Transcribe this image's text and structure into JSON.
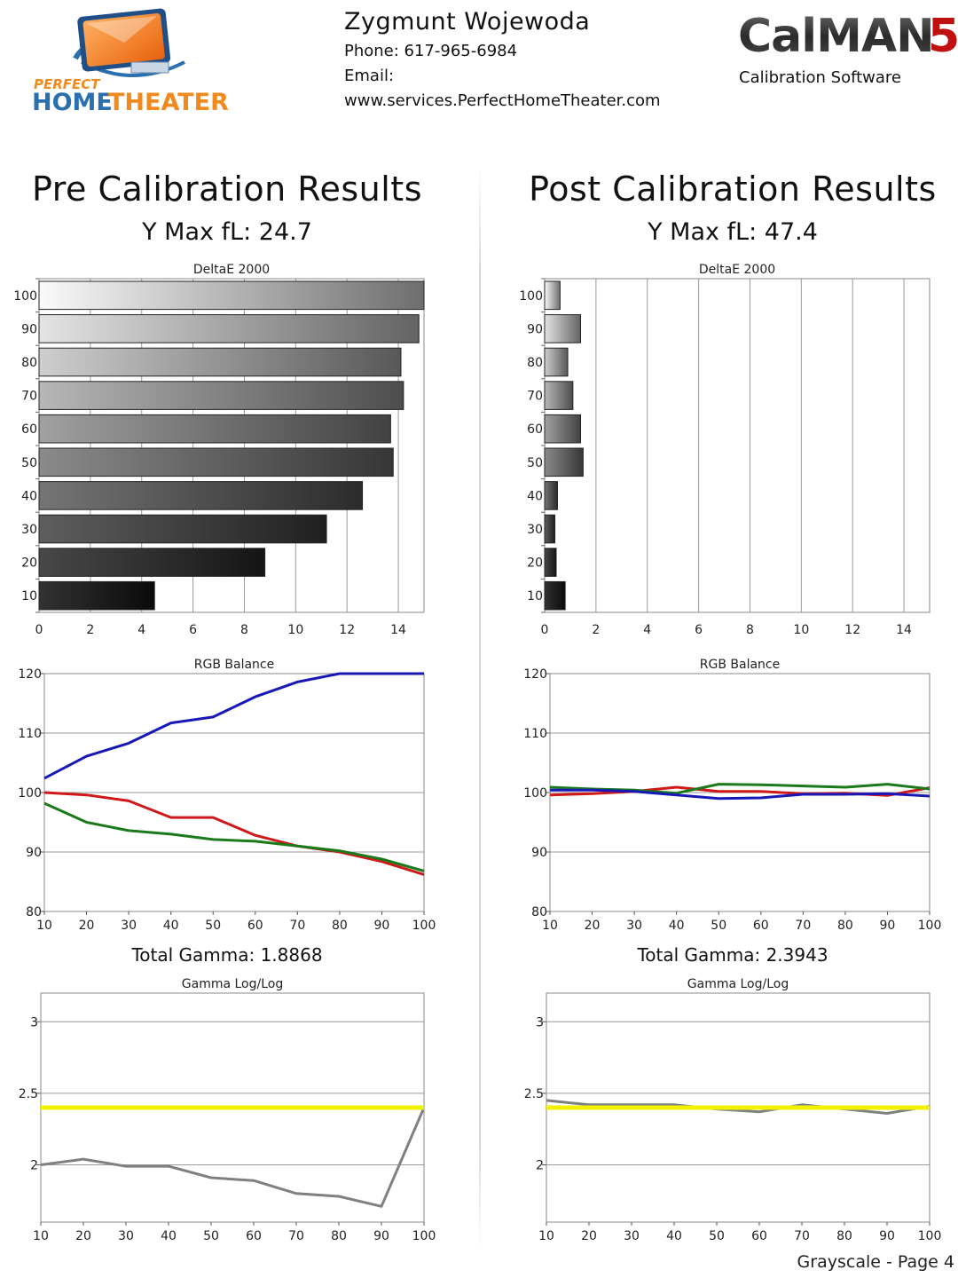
{
  "header": {
    "left_logo": {
      "line1": "PERFECT",
      "line2_home": "HOME",
      "line2_theater": "THEATER"
    },
    "contact": {
      "name": "Zygmunt Wojewoda",
      "phone": "Phone: 617-965-6984",
      "email": "Email:",
      "website": "www.services.PerfectHomeTheater.com"
    },
    "right_logo": {
      "text": "CalMAN",
      "version": "5",
      "subtitle": "Calibration Software"
    }
  },
  "pre": {
    "title": "Pre Calibration Results",
    "ymax": "Y Max fL: 24.7",
    "gamma_total": "Total Gamma: 1.8868"
  },
  "post": {
    "title": "Post Calibration Results",
    "ymax": "Y Max fL: 47.4",
    "gamma_total": "Total Gamma: 2.3943"
  },
  "footer": {
    "text": "Grayscale - Page 4"
  },
  "colors": {
    "red": "#d01818",
    "green": "#1a7a1a",
    "blue": "#1818b8",
    "gamma_line": "#808080",
    "target": "#f2f200"
  },
  "chart_data": [
    {
      "id": "pre-deltae",
      "type": "bar",
      "orientation": "horizontal",
      "title": "DeltaE 2000",
      "categories": [
        "100",
        "90",
        "80",
        "70",
        "60",
        "50",
        "40",
        "30",
        "20",
        "10"
      ],
      "values": [
        15.0,
        14.8,
        14.1,
        14.2,
        13.7,
        13.8,
        12.6,
        11.2,
        8.8,
        4.5
      ],
      "xlim": [
        0,
        15
      ],
      "xticks": [
        0,
        2,
        4,
        6,
        8,
        10,
        12,
        14
      ],
      "grid": true
    },
    {
      "id": "post-deltae",
      "type": "bar",
      "orientation": "horizontal",
      "title": "DeltaE 2000",
      "categories": [
        "100",
        "90",
        "80",
        "70",
        "60",
        "50",
        "40",
        "30",
        "20",
        "10"
      ],
      "values": [
        0.6,
        1.4,
        0.9,
        1.1,
        1.4,
        1.5,
        0.5,
        0.4,
        0.45,
        0.8
      ],
      "xlim": [
        0,
        15
      ],
      "xticks": [
        0,
        2,
        4,
        6,
        8,
        10,
        12,
        14
      ],
      "grid": true
    },
    {
      "id": "pre-rgb",
      "type": "line",
      "title": "RGB Balance",
      "x": [
        10,
        20,
        30,
        40,
        50,
        60,
        70,
        80,
        90,
        100
      ],
      "series": [
        {
          "color": "red",
          "values": [
            100.0,
            99.6,
            98.6,
            95.8,
            95.8,
            92.8,
            91.0,
            90.0,
            88.4,
            86.2
          ]
        },
        {
          "color": "green",
          "values": [
            98.2,
            95.0,
            93.6,
            93.0,
            92.1,
            91.8,
            91.0,
            90.2,
            88.8,
            86.8
          ]
        },
        {
          "color": "blue",
          "values": [
            102.4,
            106.1,
            108.3,
            111.7,
            112.7,
            116.1,
            118.6,
            120.0,
            120.0,
            120.0
          ]
        }
      ],
      "xlim": [
        10,
        100
      ],
      "ylim": [
        80,
        120
      ],
      "yticks": [
        80,
        90,
        100,
        110,
        120
      ],
      "grid": true
    },
    {
      "id": "post-rgb",
      "type": "line",
      "title": "RGB Balance",
      "x": [
        10,
        20,
        30,
        40,
        50,
        60,
        70,
        80,
        90,
        100
      ],
      "series": [
        {
          "color": "red",
          "values": [
            99.6,
            99.8,
            100.2,
            100.9,
            100.2,
            100.2,
            99.8,
            99.9,
            99.5,
            100.8
          ]
        },
        {
          "color": "green",
          "values": [
            100.9,
            100.6,
            100.4,
            99.9,
            101.4,
            101.3,
            101.1,
            100.9,
            101.4,
            100.6
          ]
        },
        {
          "color": "blue",
          "values": [
            100.4,
            100.4,
            100.2,
            99.6,
            99.0,
            99.1,
            99.7,
            99.7,
            99.8,
            99.4
          ]
        }
      ],
      "xlim": [
        10,
        100
      ],
      "ylim": [
        80,
        120
      ],
      "yticks": [
        80,
        90,
        100,
        110,
        120
      ],
      "grid": true
    },
    {
      "id": "pre-gamma",
      "type": "line",
      "title": "Gamma Log/Log",
      "x": [
        10,
        20,
        30,
        40,
        50,
        60,
        70,
        80,
        90,
        100
      ],
      "series": [
        {
          "color": "gamma_line",
          "values": [
            2.0,
            2.04,
            1.99,
            1.99,
            1.91,
            1.89,
            1.8,
            1.78,
            1.71,
            2.4
          ]
        },
        {
          "color": "target",
          "values": [
            2.4,
            2.4,
            2.4,
            2.4,
            2.4,
            2.4,
            2.4,
            2.4,
            2.4,
            2.4
          ]
        }
      ],
      "xlim": [
        10,
        100
      ],
      "ylim": [
        1.6,
        3.2
      ],
      "yticks": [
        2,
        2.5,
        3
      ],
      "grid": true
    },
    {
      "id": "post-gamma",
      "type": "line",
      "title": "Gamma Log/Log",
      "x": [
        10,
        20,
        30,
        40,
        50,
        60,
        70,
        80,
        90,
        100
      ],
      "series": [
        {
          "color": "gamma_line",
          "values": [
            2.45,
            2.42,
            2.42,
            2.42,
            2.39,
            2.37,
            2.42,
            2.39,
            2.36,
            2.41
          ]
        },
        {
          "color": "target",
          "values": [
            2.4,
            2.4,
            2.4,
            2.4,
            2.4,
            2.4,
            2.4,
            2.4,
            2.4,
            2.4
          ]
        }
      ],
      "xlim": [
        10,
        100
      ],
      "ylim": [
        1.6,
        3.2
      ],
      "yticks": [
        2,
        2.5,
        3
      ],
      "grid": true
    }
  ]
}
